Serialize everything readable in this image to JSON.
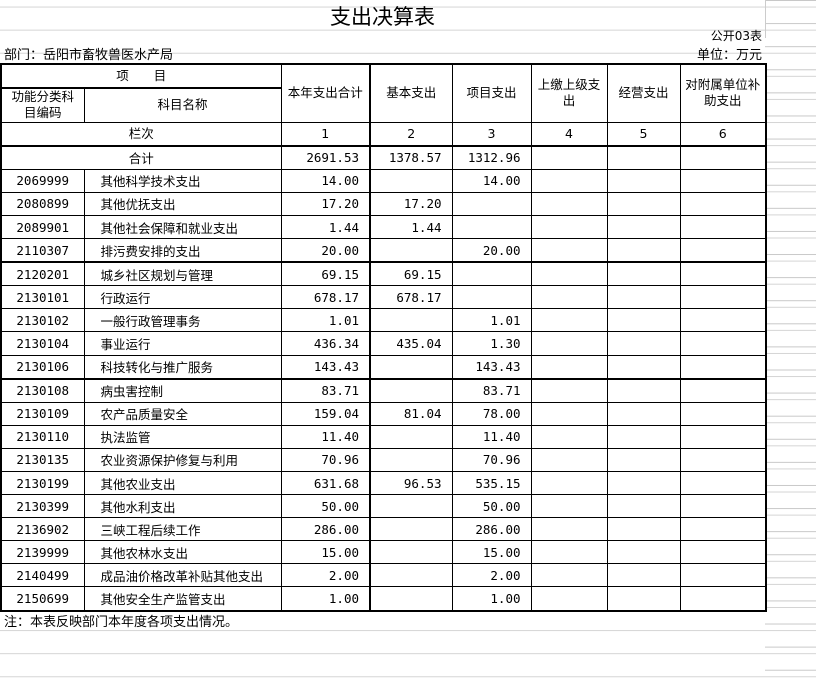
{
  "title": "支出决算表",
  "form_code": "公开03表",
  "department": "部门：岳阳市畜牧兽医水产局",
  "unit": "单位：万元",
  "header": {
    "item": "项　　目",
    "code_col": "功能分类科目编码",
    "name_col": "科目名称",
    "columns": [
      "本年支出合计",
      "基本支出",
      "项目支出",
      "上缴上级支出",
      "经营支出",
      "对附属单位补助支出"
    ],
    "row_label": "栏次",
    "col_numbers": [
      "1",
      "2",
      "3",
      "4",
      "5",
      "6"
    ]
  },
  "total": {
    "label": "合计",
    "values": [
      "2691.53",
      "1378.57",
      "1312.96",
      "",
      "",
      ""
    ]
  },
  "rows": [
    {
      "code": "2069999",
      "name": "其他科学技术支出",
      "values": [
        "14.00",
        "",
        "14.00",
        "",
        "",
        ""
      ]
    },
    {
      "code": "2080899",
      "name": "其他优抚支出",
      "values": [
        "17.20",
        "17.20",
        "",
        "",
        "",
        ""
      ]
    },
    {
      "code": "2089901",
      "name": "其他社会保障和就业支出",
      "values": [
        "1.44",
        "1.44",
        "",
        "",
        "",
        ""
      ]
    },
    {
      "code": "2110307",
      "name": "排污费安排的支出",
      "values": [
        "20.00",
        "",
        "20.00",
        "",
        "",
        ""
      ]
    },
    {
      "code": "2120201",
      "name": "城乡社区规划与管理",
      "values": [
        "69.15",
        "69.15",
        "",
        "",
        "",
        ""
      ]
    },
    {
      "code": "2130101",
      "name": "行政运行",
      "values": [
        "678.17",
        "678.17",
        "",
        "",
        "",
        ""
      ]
    },
    {
      "code": "2130102",
      "name": "一般行政管理事务",
      "values": [
        "1.01",
        "",
        "1.01",
        "",
        "",
        ""
      ]
    },
    {
      "code": "2130104",
      "name": "事业运行",
      "values": [
        "436.34",
        "435.04",
        "1.30",
        "",
        "",
        ""
      ]
    },
    {
      "code": "2130106",
      "name": "科技转化与推广服务",
      "values": [
        "143.43",
        "",
        "143.43",
        "",
        "",
        ""
      ]
    },
    {
      "code": "2130108",
      "name": "病虫害控制",
      "values": [
        "83.71",
        "",
        "83.71",
        "",
        "",
        ""
      ]
    },
    {
      "code": "2130109",
      "name": "农产品质量安全",
      "values": [
        "159.04",
        "81.04",
        "78.00",
        "",
        "",
        ""
      ]
    },
    {
      "code": "2130110",
      "name": "执法监管",
      "values": [
        "11.40",
        "",
        "11.40",
        "",
        "",
        ""
      ]
    },
    {
      "code": "2130135",
      "name": "农业资源保护修复与利用",
      "values": [
        "70.96",
        "",
        "70.96",
        "",
        "",
        ""
      ]
    },
    {
      "code": "2130199",
      "name": "其他农业支出",
      "values": [
        "631.68",
        "96.53",
        "535.15",
        "",
        "",
        ""
      ]
    },
    {
      "code": "2130399",
      "name": "其他水利支出",
      "values": [
        "50.00",
        "",
        "50.00",
        "",
        "",
        ""
      ]
    },
    {
      "code": "2136902",
      "name": "三峡工程后续工作",
      "values": [
        "286.00",
        "",
        "286.00",
        "",
        "",
        ""
      ]
    },
    {
      "code": "2139999",
      "name": "其他农林水支出",
      "values": [
        "15.00",
        "",
        "15.00",
        "",
        "",
        ""
      ]
    },
    {
      "code": "2140499",
      "name": "成品油价格改革补贴其他支出",
      "values": [
        "2.00",
        "",
        "2.00",
        "",
        "",
        ""
      ]
    },
    {
      "code": "2150699",
      "name": "其他安全生产监管支出",
      "values": [
        "1.00",
        "",
        "1.00",
        "",
        "",
        ""
      ]
    }
  ],
  "note": "注：本表反映部门本年度各项支出情况。"
}
